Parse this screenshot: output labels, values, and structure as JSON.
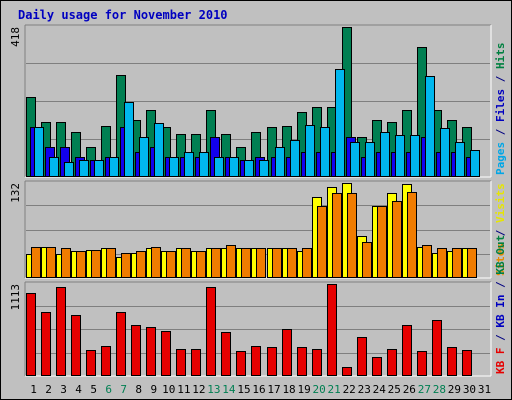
{
  "chart_data": {
    "type": "bar",
    "title": "Daily usage for November 2010",
    "x": [
      "1",
      "2",
      "3",
      "4",
      "5",
      "6",
      "7",
      "8",
      "9",
      "10",
      "11",
      "12",
      "13",
      "14",
      "15",
      "16",
      "17",
      "18",
      "19",
      "20",
      "21",
      "22",
      "23",
      "24",
      "25",
      "26",
      "27",
      "28",
      "29",
      "30",
      "31"
    ],
    "weekend_days": [
      "6",
      "7",
      "13",
      "14",
      "20",
      "21",
      "27",
      "28"
    ],
    "panels": [
      {
        "id": "hits",
        "max_label": "418",
        "ymax": 418,
        "right_label": [
          {
            "text": "Pages",
            "color": "#00a6e6"
          },
          {
            "text": " / ",
            "color": "#000080"
          },
          {
            "text": "Files",
            "color": "#0000c0"
          },
          {
            "text": " / ",
            "color": "#000080"
          },
          {
            "text": "Hits",
            "color": "#008040"
          }
        ],
        "series": [
          {
            "name": "Hits",
            "color": "#007f52",
            "values": [
              222,
              153,
              153,
              125,
              83,
              141,
              285,
              159,
              188,
              139,
              119,
              119,
              188,
              119,
              83,
              125,
              139,
              141,
              180,
              194,
              194,
              418,
              111,
              159,
              153,
              188,
              362,
              186,
              159,
              139,
              0
            ]
          },
          {
            "name": "Files",
            "color": "#1200ee",
            "values": [
              139,
              83,
              83,
              55,
              46,
              55,
              139,
              69,
              83,
              55,
              55,
              55,
              111,
              55,
              46,
              55,
              55,
              55,
              69,
              69,
              69,
              111,
              55,
              69,
              69,
              69,
              111,
              69,
              69,
              55,
              0
            ]
          },
          {
            "name": "Pages",
            "color": "#00b7ee",
            "values": [
              139,
              55,
              41,
              48,
              48,
              55,
              210,
              111,
              150,
              55,
              69,
              69,
              55,
              55,
              48,
              48,
              83,
              104,
              146,
              139,
              300,
              97,
              97,
              125,
              118,
              118,
              281,
              137,
              97,
              76,
              0
            ]
          }
        ]
      },
      {
        "id": "visits",
        "max_label": "132",
        "ymax": 132,
        "right_label": [
          {
            "text": "Sites",
            "color": "#e68a00"
          },
          {
            "text": " / ",
            "color": "#000080"
          },
          {
            "text": "Visits",
            "color": "#e6e600"
          }
        ],
        "series": [
          {
            "name": "Visits",
            "color": "#ffff00",
            "values": [
              33,
              43,
              33,
              38,
              39,
              41,
              29,
              35,
              41,
              38,
              41,
              38,
              41,
              41,
              41,
              41,
              41,
              41,
              38,
              113,
              127,
              132,
              58,
              100,
              118,
              130,
              43,
              35,
              38,
              41,
              0
            ]
          },
          {
            "name": "Sites",
            "color": "#f07c00",
            "values": [
              43,
              43,
              41,
              38,
              39,
              41,
              35,
              38,
              43,
              38,
              41,
              38,
              41,
              46,
              41,
              41,
              41,
              41,
              41,
              100,
              118,
              118,
              50,
              100,
              107,
              120,
              46,
              41,
              41,
              41,
              0
            ]
          }
        ]
      },
      {
        "id": "kbytes",
        "max_label": "1113",
        "ymax": 1113,
        "right_label": [
          {
            "text": "KB F",
            "color": "#e60000"
          },
          {
            "text": " / ",
            "color": "#000080"
          },
          {
            "text": "KB In",
            "color": "#0000c0"
          },
          {
            "text": " / ",
            "color": "#000080"
          },
          {
            "text": "KB Out",
            "color": "#008040"
          }
        ],
        "series": [
          {
            "name": "KB F",
            "color": "#e60000",
            "values": [
              1000,
              780,
              1075,
              735,
              312,
              367,
              780,
              623,
              590,
              545,
              330,
              330,
              1075,
              535,
              302,
              360,
              350,
              568,
              345,
              330,
              1113,
              110,
              475,
              230,
              325,
              620,
              302,
              675,
              350,
              312,
              0
            ]
          },
          {
            "name": "KB In",
            "color": "#0000e6",
            "values": [
              0,
              0,
              0,
              0,
              0,
              0,
              0,
              0,
              0,
              0,
              0,
              0,
              0,
              0,
              0,
              0,
              0,
              0,
              0,
              0,
              0,
              0,
              0,
              0,
              0,
              0,
              0,
              0,
              0,
              0,
              0
            ]
          },
          {
            "name": "KB Out",
            "color": "#008040",
            "values": [
              0,
              0,
              0,
              0,
              0,
              0,
              0,
              0,
              0,
              0,
              0,
              0,
              0,
              0,
              0,
              0,
              0,
              0,
              0,
              0,
              0,
              0,
              0,
              0,
              0,
              0,
              0,
              0,
              0,
              0,
              0
            ]
          }
        ]
      }
    ],
    "grid": true,
    "colors": {
      "background": "#c0c0c0",
      "title": "#0000c0",
      "weekday_label": "#000000",
      "weekend_label": "#007f52"
    }
  }
}
